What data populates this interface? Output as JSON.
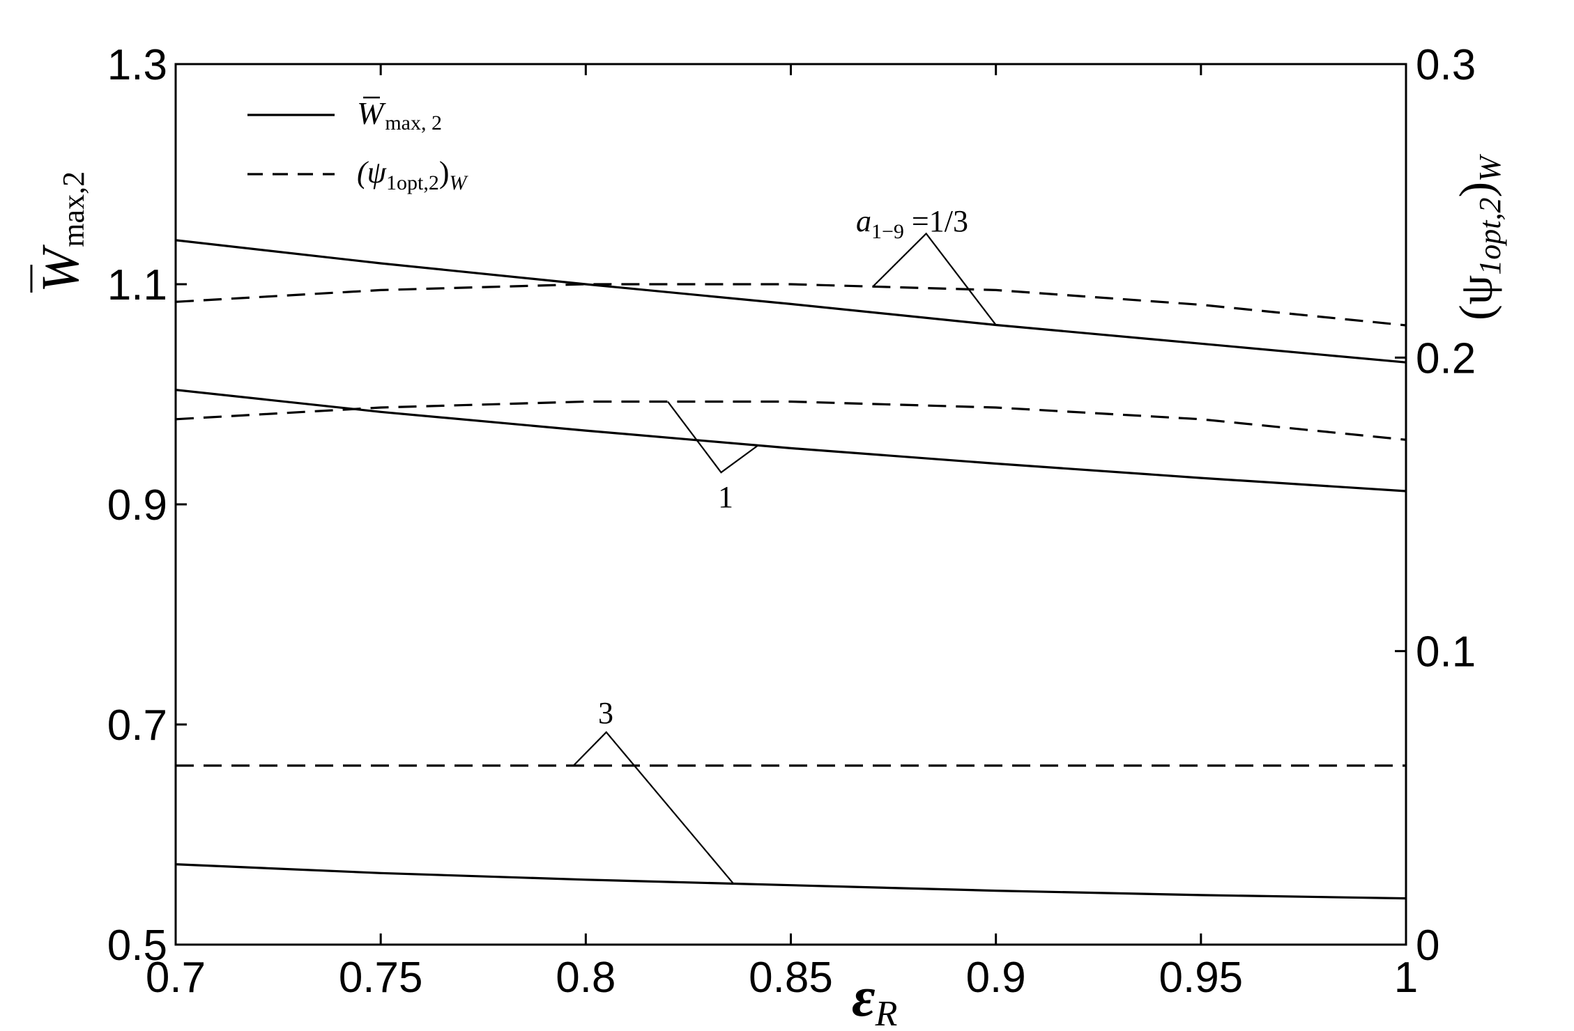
{
  "chart_data": {
    "type": "line",
    "xlabel_symbol": "ε",
    "xlabel_sub": "R",
    "ylabel_left_main": "W",
    "ylabel_left_sub": "max,2",
    "ylabel_right_main": "(ψ",
    "ylabel_right_sub1": "1opt,2",
    "ylabel_right_close": ")",
    "ylabel_right_sub2": "W",
    "xlim": [
      0.7,
      1.0
    ],
    "ylim_left": [
      0.5,
      1.3
    ],
    "ylim_right": [
      0.0,
      0.3
    ],
    "x_ticks": [
      "0.7",
      "0.75",
      "0.8",
      "0.85",
      "0.9",
      "0.95",
      "1"
    ],
    "y_left_ticks": [
      "0.5",
      "0.7",
      "0.9",
      "1.1",
      "1.3"
    ],
    "y_right_ticks": [
      "0",
      "0.1",
      "0.2",
      "0.3"
    ],
    "grid": false,
    "legend_position": "top-left",
    "legend": [
      {
        "style": "solid",
        "main": "W",
        "sub": "max, 2"
      },
      {
        "style": "dashed",
        "main": "(ψ",
        "sub": "1opt,2",
        "close": ")",
        "sub2": "W"
      }
    ],
    "annotations": [
      {
        "label_main": "a",
        "label_sub": "1−9",
        "label_eq": " =1/3"
      },
      {
        "label_main": "1"
      },
      {
        "label_main": "3"
      }
    ],
    "x": [
      0.7,
      0.75,
      0.8,
      0.85,
      0.9,
      0.95,
      1.0
    ],
    "series": [
      {
        "axis": "left",
        "style": "solid",
        "group": "1/3",
        "values": [
          1.14,
          1.119,
          1.1,
          1.082,
          1.063,
          1.046,
          1.029
        ]
      },
      {
        "axis": "left",
        "style": "solid",
        "group": "1",
        "values": [
          1.004,
          0.984,
          0.967,
          0.951,
          0.937,
          0.924,
          0.912
        ]
      },
      {
        "axis": "left",
        "style": "solid",
        "group": "3",
        "values": [
          0.573,
          0.565,
          0.559,
          0.554,
          0.549,
          0.545,
          0.542
        ]
      },
      {
        "axis": "right",
        "style": "dashed",
        "group": "1/3",
        "values": [
          0.219,
          0.223,
          0.225,
          0.225,
          0.223,
          0.218,
          0.211
        ]
      },
      {
        "axis": "right",
        "style": "dashed",
        "group": "1",
        "values": [
          0.179,
          0.183,
          0.185,
          0.185,
          0.183,
          0.179,
          0.172
        ]
      },
      {
        "axis": "right",
        "style": "dashed",
        "group": "3",
        "values": [
          0.061,
          0.061,
          0.061,
          0.061,
          0.061,
          0.061,
          0.061
        ]
      }
    ]
  }
}
